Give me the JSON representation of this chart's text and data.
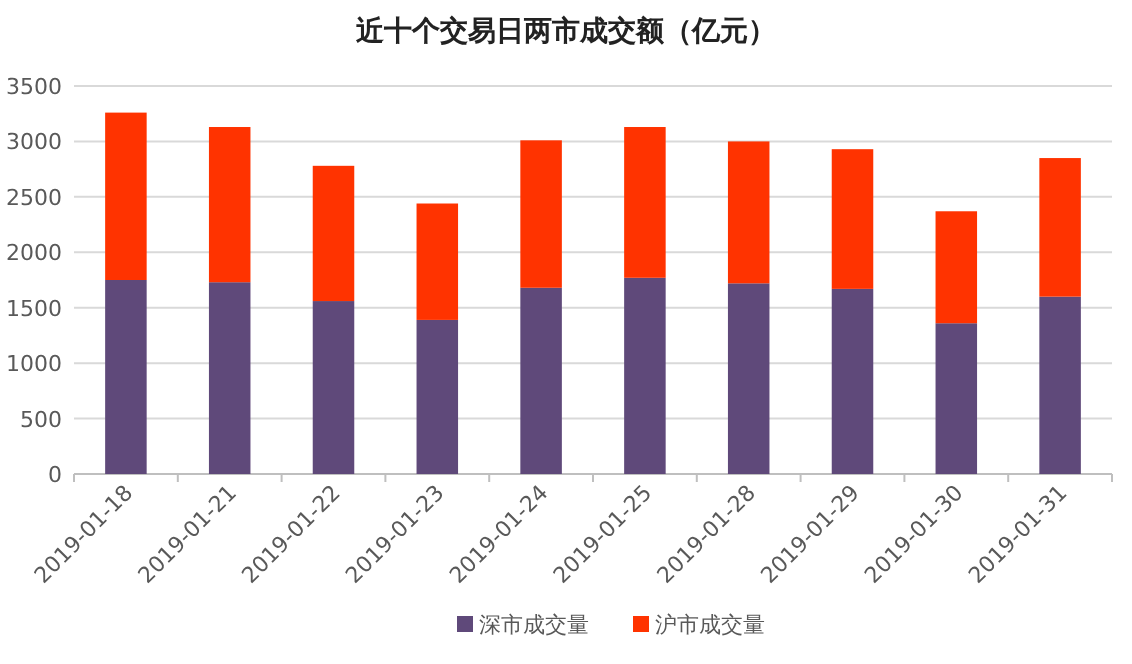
{
  "chart_data": {
    "type": "bar",
    "title": "近十个交易日两市成交额（亿元）",
    "categories": [
      "2019-01-18",
      "2019-01-21",
      "2019-01-22",
      "2019-01-23",
      "2019-01-24",
      "2019-01-25",
      "2019-01-28",
      "2019-01-29",
      "2019-01-30",
      "2019-01-31"
    ],
    "series": [
      {
        "name": "深市成交量",
        "color": "#5f497a",
        "values": [
          1750,
          1730,
          1560,
          1390,
          1680,
          1770,
          1720,
          1670,
          1360,
          1600
        ]
      },
      {
        "name": "沪市成交量",
        "color": "#ff3300",
        "values": [
          1510,
          1400,
          1220,
          1050,
          1330,
          1360,
          1280,
          1260,
          1010,
          1250
        ]
      }
    ],
    "stacked": true,
    "ylim": [
      0,
      3500
    ],
    "yticks": [
      0,
      500,
      1000,
      1500,
      2000,
      2500,
      3000,
      3500
    ],
    "grid": "y",
    "legend": "bottom"
  }
}
